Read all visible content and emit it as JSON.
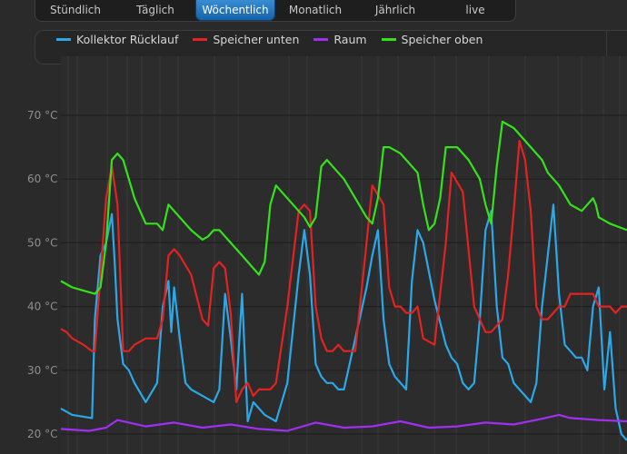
{
  "tabs": [
    {
      "label": "Stündlich",
      "active": false
    },
    {
      "label": "Täglich",
      "active": false
    },
    {
      "label": "Wöchentlich",
      "active": true
    },
    {
      "label": "Monatlich",
      "active": false
    },
    {
      "label": "Jährlich",
      "active": false
    },
    {
      "label": "live",
      "active": false
    }
  ],
  "chart_data": {
    "type": "line",
    "xlabel": "",
    "ylabel": "",
    "yticks": [
      20,
      30,
      40,
      50,
      60,
      70
    ],
    "ytick_labels": [
      "20 °C",
      "30 °C",
      "40 °C",
      "50 °C",
      "60 °C",
      "70 °C"
    ],
    "ylim": [
      19,
      73
    ],
    "xlim": [
      0,
      100
    ],
    "grid": true,
    "legend": "top-left",
    "series": [
      {
        "name": "Kollektor Rücklauf",
        "color": "#2aa8e8",
        "x": [
          0,
          2,
          5.5,
          6,
          7,
          8,
          9,
          9.5,
          10,
          11,
          12,
          13,
          15,
          17,
          18,
          19,
          19.5,
          20,
          21,
          22,
          23,
          25,
          27,
          28,
          29,
          30,
          31,
          32,
          33,
          34,
          35,
          36,
          37,
          38,
          40,
          42,
          43,
          44,
          45,
          45.5,
          46,
          47,
          48,
          49,
          50,
          52,
          54,
          55,
          56,
          57,
          58,
          59,
          60,
          61,
          62,
          63,
          64,
          66,
          68,
          69,
          70,
          71,
          72,
          73,
          74,
          75,
          76,
          77,
          78,
          79,
          80,
          81,
          82,
          83,
          84,
          85,
          86,
          87,
          88,
          89,
          90,
          91,
          92,
          93,
          94,
          95,
          96,
          97,
          98,
          99,
          100
        ],
        "y": [
          24,
          23,
          22.5,
          38,
          48,
          50,
          54.5,
          47,
          38,
          31,
          30,
          28,
          25,
          28,
          40,
          44,
          36,
          43,
          35,
          28,
          27,
          26,
          25,
          27,
          42,
          35,
          27,
          42,
          22,
          25,
          24,
          23,
          22.5,
          22,
          28,
          45,
          52,
          45,
          31,
          30,
          29,
          28,
          28,
          27,
          27,
          35,
          43,
          48,
          52,
          38,
          31,
          29,
          28,
          27,
          44,
          52,
          50,
          41,
          34,
          32,
          31,
          28,
          27,
          28,
          38,
          52,
          55,
          40,
          32,
          31,
          28,
          27,
          26,
          25,
          28,
          40,
          48,
          56,
          42,
          34,
          33,
          32,
          32,
          30,
          40,
          43,
          27,
          36,
          24,
          20,
          19
        ]
      },
      {
        "name": "Speicher unten",
        "color": "#e32222",
        "x": [
          0,
          1,
          2,
          4,
          5.5,
          6,
          7,
          8,
          9,
          9.5,
          10,
          11,
          12,
          13,
          15,
          17,
          18,
          19,
          20,
          21,
          23,
          25,
          26,
          27,
          28,
          29,
          30,
          31,
          32,
          33,
          34,
          35,
          37,
          38,
          40,
          42,
          43,
          44,
          45,
          46,
          47,
          48,
          49,
          50,
          52,
          54,
          55,
          57,
          58,
          59,
          60,
          61,
          62,
          63,
          64,
          66,
          68,
          69,
          71,
          73,
          74,
          75,
          76,
          77,
          78,
          79,
          80,
          81,
          82,
          83,
          84,
          85,
          86,
          87,
          88,
          89,
          90,
          92,
          94,
          95,
          96,
          97,
          98,
          99,
          100
        ],
        "y": [
          36.5,
          36,
          35,
          34,
          33,
          33,
          45,
          57,
          62,
          59,
          56,
          33,
          33,
          34,
          35,
          35,
          38,
          48,
          49,
          48,
          45,
          38,
          37,
          46,
          47,
          46,
          39,
          25,
          27,
          28,
          26,
          27,
          27,
          28,
          40,
          55,
          56,
          55,
          40,
          35,
          33,
          33,
          34,
          33,
          33,
          50,
          59,
          56,
          43,
          40,
          40,
          39,
          39,
          40,
          35,
          34,
          50,
          61,
          58,
          40,
          38,
          36,
          36,
          37,
          38,
          45,
          55,
          66,
          63,
          55,
          40,
          38,
          38,
          39,
          40,
          40,
          42,
          42,
          42,
          40,
          40,
          40,
          39,
          40,
          40
        ]
      },
      {
        "name": "Raum",
        "color": "#a12ff2",
        "x": [
          0,
          5,
          8,
          10,
          15,
          20,
          25,
          30,
          35,
          40,
          45,
          50,
          55,
          60,
          65,
          70,
          75,
          80,
          85,
          88,
          90,
          95,
          100
        ],
        "y": [
          20.8,
          20.5,
          21,
          22.2,
          21.2,
          21.8,
          21,
          21.5,
          20.8,
          20.5,
          21.8,
          21,
          21.2,
          22,
          21,
          21.2,
          21.8,
          21.5,
          22.4,
          23,
          22.5,
          22.2,
          22
        ]
      },
      {
        "name": "Speicher oben",
        "color": "#35e21a",
        "x": [
          0,
          2,
          4,
          6,
          7,
          8,
          9,
          10,
          11,
          12,
          13,
          14,
          15,
          17,
          18,
          19,
          20,
          21,
          23,
          25,
          26,
          27,
          28,
          30,
          32,
          34,
          35,
          36,
          37,
          38,
          40,
          43,
          44,
          45,
          46,
          47,
          48,
          50,
          52,
          54,
          55,
          56,
          57,
          58,
          60,
          63,
          64,
          65,
          66,
          67,
          68,
          70,
          72,
          74,
          75,
          76,
          77,
          78,
          80,
          82,
          83,
          84,
          85,
          86,
          88,
          90,
          92,
          94,
          94.5,
          95,
          97,
          100
        ],
        "y": [
          44,
          43,
          42.5,
          42,
          43,
          50,
          63,
          64,
          63,
          60,
          57,
          55,
          53,
          53,
          52,
          56,
          55,
          54,
          52,
          50.5,
          51,
          52,
          52,
          50,
          48,
          46,
          45,
          47,
          56,
          59,
          57,
          54,
          52.5,
          54,
          62,
          63,
          62,
          60,
          57,
          54,
          53,
          57,
          65,
          65,
          64,
          61,
          56,
          52,
          53,
          57,
          65,
          65,
          63,
          60,
          56,
          53,
          62,
          69,
          68,
          66,
          65,
          64,
          63,
          61,
          59,
          56,
          55,
          57,
          56,
          54,
          53,
          52
        ]
      }
    ]
  }
}
